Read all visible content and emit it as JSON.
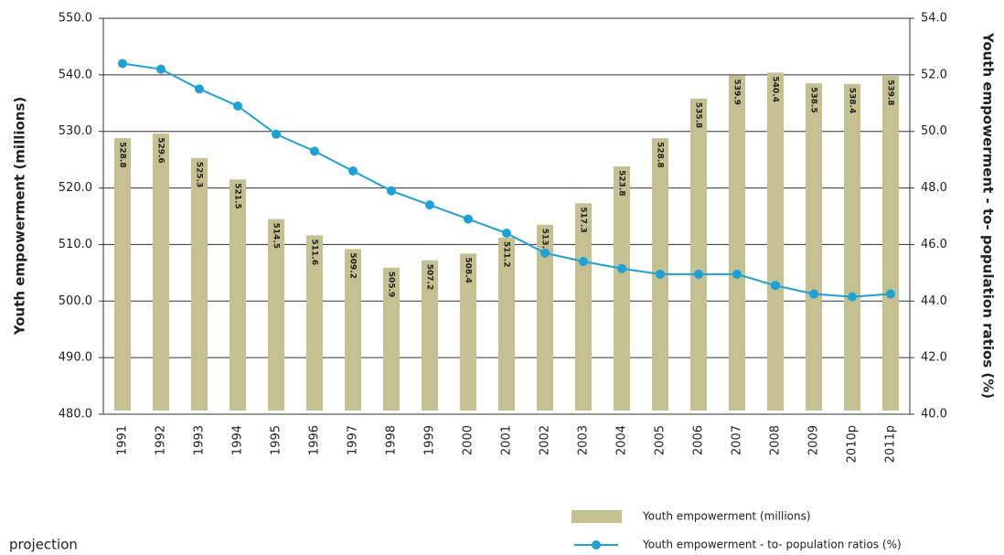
{
  "chart_data": {
    "type": "bar",
    "y_label": "Youth empowerment (millions)",
    "y2_label": "Youth empowerment - to- population ratios (%)",
    "note": "projection",
    "categories": [
      "1991",
      "1992",
      "1993",
      "1994",
      "1995",
      "1996",
      "1997",
      "1998",
      "1999",
      "2000",
      "2001",
      "2002",
      "2003",
      "2004",
      "2005",
      "2006",
      "2007",
      "2008",
      "2009",
      "2010p",
      "2011p"
    ],
    "series": [
      {
        "name": "Youth empowerment (millions)",
        "type": "bar",
        "color": "#c4c08f",
        "values": [
          528.8,
          529.6,
          525.3,
          521.5,
          514.5,
          511.6,
          509.2,
          505.9,
          507.2,
          508.4,
          511.2,
          513.5,
          517.3,
          523.8,
          528.8,
          535.8,
          539.9,
          540.4,
          538.5,
          538.4,
          539.8
        ]
      },
      {
        "name": "Youth empowerment - to- population ratios (%)",
        "type": "line",
        "axis": "y2",
        "color": "#1da1d8",
        "values": [
          52.4,
          52.2,
          51.5,
          50.9,
          49.9,
          49.3,
          48.6,
          47.9,
          47.4,
          46.9,
          46.4,
          45.7,
          45.4,
          45.15,
          44.95,
          44.95,
          44.95,
          44.55,
          44.25,
          44.15,
          44.25
        ]
      }
    ],
    "ylim": [
      480,
      550
    ],
    "yticks": [
      {
        "value": 480,
        "label": "480.0"
      },
      {
        "value": 490,
        "label": "490.0"
      },
      {
        "value": 500,
        "label": "500.0"
      },
      {
        "value": 510,
        "label": "510.0"
      },
      {
        "value": 520,
        "label": "520.0"
      },
      {
        "value": 530,
        "label": "530.0"
      },
      {
        "value": 540,
        "label": "540.0"
      },
      {
        "value": 550,
        "label": "550.0"
      }
    ],
    "y2lim": [
      40,
      54
    ],
    "y2ticks": [
      {
        "value": 40,
        "label": "40.0"
      },
      {
        "value": 42,
        "label": "42.0"
      },
      {
        "value": 44,
        "label": "44.0"
      },
      {
        "value": 46,
        "label": "46.0"
      },
      {
        "value": 48,
        "label": "48.0"
      },
      {
        "value": 50,
        "label": "50.0"
      },
      {
        "value": 52,
        "label": "52.0"
      },
      {
        "value": 54,
        "label": "54.0"
      }
    ],
    "grid": true,
    "legend": "bottom-right"
  }
}
